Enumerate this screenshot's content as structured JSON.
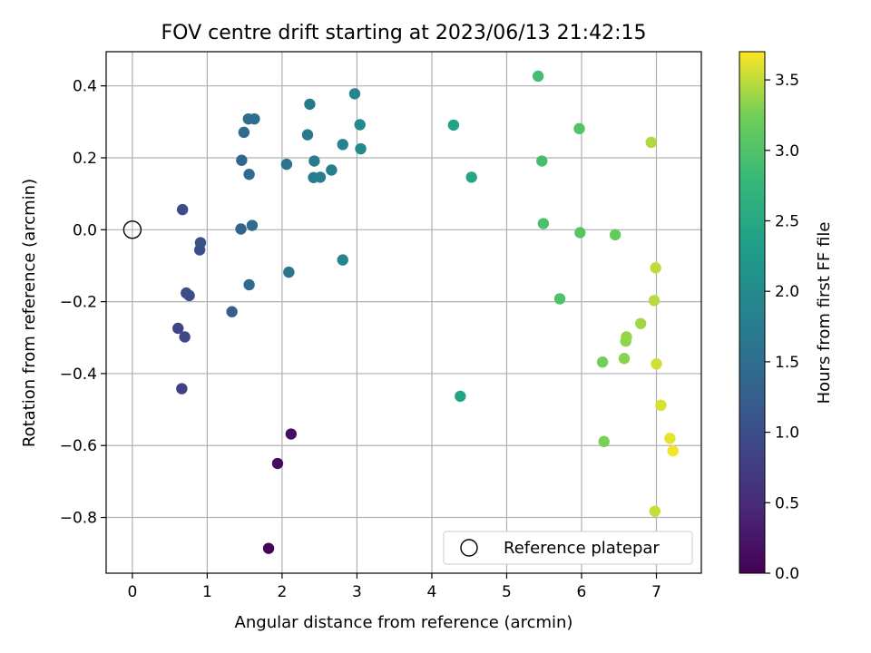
{
  "chart_data": {
    "type": "scatter",
    "title": "FOV centre drift starting at 2023/06/13 21:42:15",
    "xlabel": "Angular distance from reference (arcmin)",
    "ylabel": "Rotation from reference (arcmin)",
    "xlim": [
      -0.35,
      7.6
    ],
    "ylim": [
      -0.955,
      0.495
    ],
    "xticks": [
      0,
      1,
      2,
      3,
      4,
      5,
      6,
      7
    ],
    "xtick_labels": [
      "0",
      "1",
      "2",
      "3",
      "4",
      "5",
      "6",
      "7"
    ],
    "yticks": [
      -0.8,
      -0.6,
      -0.4,
      -0.2,
      0.0,
      0.2,
      0.4
    ],
    "ytick_labels": [
      "−0.8",
      "−0.6",
      "−0.4",
      "−0.2",
      "0.0",
      "0.2",
      "0.4"
    ],
    "grid": true,
    "colormap": "viridis",
    "colorbar": {
      "label": "Hours from first FF file",
      "range": [
        0,
        3.7
      ],
      "ticks": [
        0.0,
        0.5,
        1.0,
        1.5,
        2.0,
        2.5,
        3.0,
        3.5
      ],
      "tick_labels": [
        "0.0",
        "0.5",
        "1.0",
        "1.5",
        "2.0",
        "2.5",
        "3.0",
        "3.5"
      ]
    },
    "reference": {
      "x": 0,
      "y": 0,
      "label": "Reference platepar"
    },
    "legend": {
      "position": "lower-right",
      "label": "Reference platepar"
    },
    "points": [
      {
        "x": 1.82,
        "y": -0.886,
        "c": 0.05
      },
      {
        "x": 1.94,
        "y": -0.65,
        "c": 0.12
      },
      {
        "x": 2.12,
        "y": -0.568,
        "c": 0.18
      },
      {
        "x": 0.66,
        "y": -0.442,
        "c": 0.82
      },
      {
        "x": 0.61,
        "y": -0.274,
        "c": 0.88
      },
      {
        "x": 0.7,
        "y": -0.298,
        "c": 0.92
      },
      {
        "x": 0.72,
        "y": -0.176,
        "c": 0.95
      },
      {
        "x": 0.76,
        "y": -0.183,
        "c": 0.98
      },
      {
        "x": 0.9,
        "y": -0.056,
        "c": 1.02
      },
      {
        "x": 0.91,
        "y": -0.036,
        "c": 1.04
      },
      {
        "x": 0.67,
        "y": 0.056,
        "c": 0.98
      },
      {
        "x": 1.33,
        "y": -0.228,
        "c": 1.22
      },
      {
        "x": 1.45,
        "y": 0.002,
        "c": 1.35
      },
      {
        "x": 1.56,
        "y": -0.153,
        "c": 1.42
      },
      {
        "x": 1.6,
        "y": 0.012,
        "c": 1.45
      },
      {
        "x": 1.46,
        "y": 0.193,
        "c": 1.38
      },
      {
        "x": 1.56,
        "y": 0.154,
        "c": 1.42
      },
      {
        "x": 1.49,
        "y": 0.271,
        "c": 1.45
      },
      {
        "x": 1.55,
        "y": 0.308,
        "c": 1.48
      },
      {
        "x": 1.63,
        "y": 0.308,
        "c": 1.5
      },
      {
        "x": 2.06,
        "y": 0.182,
        "c": 1.6
      },
      {
        "x": 2.09,
        "y": -0.118,
        "c": 1.62
      },
      {
        "x": 2.34,
        "y": 0.264,
        "c": 1.68
      },
      {
        "x": 2.37,
        "y": 0.349,
        "c": 1.7
      },
      {
        "x": 2.43,
        "y": 0.191,
        "c": 1.74
      },
      {
        "x": 2.42,
        "y": 0.145,
        "c": 1.76
      },
      {
        "x": 2.51,
        "y": 0.146,
        "c": 1.78
      },
      {
        "x": 2.66,
        "y": 0.166,
        "c": 1.8
      },
      {
        "x": 2.81,
        "y": 0.237,
        "c": 1.85
      },
      {
        "x": 2.81,
        "y": -0.084,
        "c": 1.88
      },
      {
        "x": 2.97,
        "y": 0.378,
        "c": 1.92
      },
      {
        "x": 3.04,
        "y": 0.292,
        "c": 1.95
      },
      {
        "x": 3.05,
        "y": 0.225,
        "c": 1.97
      },
      {
        "x": 4.29,
        "y": 0.291,
        "c": 2.38
      },
      {
        "x": 4.38,
        "y": -0.463,
        "c": 2.42
      },
      {
        "x": 4.53,
        "y": 0.146,
        "c": 2.45
      },
      {
        "x": 5.42,
        "y": 0.427,
        "c": 2.9
      },
      {
        "x": 5.47,
        "y": 0.191,
        "c": 2.92
      },
      {
        "x": 5.49,
        "y": 0.017,
        "c": 2.95
      },
      {
        "x": 5.71,
        "y": -0.192,
        "c": 2.98
      },
      {
        "x": 5.97,
        "y": 0.281,
        "c": 3.02
      },
      {
        "x": 5.98,
        "y": -0.008,
        "c": 3.05
      },
      {
        "x": 6.28,
        "y": -0.368,
        "c": 3.25
      },
      {
        "x": 6.3,
        "y": -0.589,
        "c": 3.28
      },
      {
        "x": 6.45,
        "y": -0.014,
        "c": 3.15
      },
      {
        "x": 6.57,
        "y": -0.358,
        "c": 3.32
      },
      {
        "x": 6.59,
        "y": -0.31,
        "c": 3.34
      },
      {
        "x": 6.6,
        "y": -0.298,
        "c": 3.36
      },
      {
        "x": 6.79,
        "y": -0.261,
        "c": 3.4
      },
      {
        "x": 6.93,
        "y": 0.243,
        "c": 3.45
      },
      {
        "x": 6.97,
        "y": -0.197,
        "c": 3.48
      },
      {
        "x": 6.98,
        "y": -0.783,
        "c": 3.52
      },
      {
        "x": 6.99,
        "y": -0.106,
        "c": 3.5
      },
      {
        "x": 7.0,
        "y": -0.373,
        "c": 3.55
      },
      {
        "x": 7.06,
        "y": -0.488,
        "c": 3.58
      },
      {
        "x": 7.18,
        "y": -0.58,
        "c": 3.62
      },
      {
        "x": 7.22,
        "y": -0.615,
        "c": 3.66
      }
    ]
  }
}
